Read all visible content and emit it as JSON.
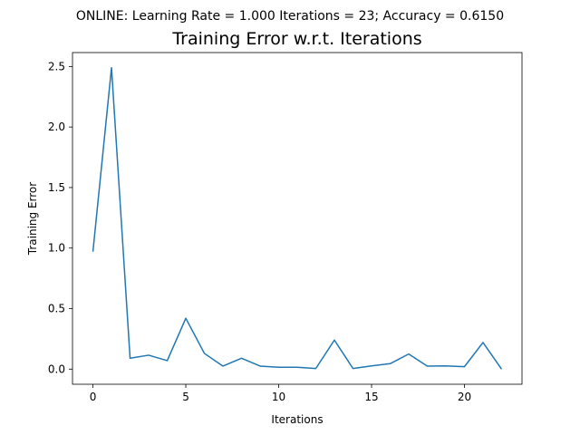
{
  "suptitle": "ONLINE: Learning Rate = 1.000 Iterations = 23; Accuracy = 0.6150",
  "colors": {
    "series": "#1f77b4",
    "axes": "#000000",
    "background": "#ffffff"
  },
  "chart_data": {
    "type": "line",
    "title": "Training Error w.r.t. Iterations",
    "xlabel": "Iterations",
    "ylabel": "Training Error",
    "xlim": [
      -1.1,
      23.1
    ],
    "ylim": [
      -0.125,
      2.615
    ],
    "xticks": [
      0,
      5,
      10,
      15,
      20
    ],
    "xtick_labels": [
      "0",
      "5",
      "10",
      "15",
      "20"
    ],
    "yticks": [
      0.0,
      0.5,
      1.0,
      1.5,
      2.0,
      2.5
    ],
    "ytick_labels": [
      "0.0",
      "0.5",
      "1.0",
      "1.5",
      "2.0",
      "2.5"
    ],
    "grid": false,
    "legend": "none",
    "series": [
      {
        "x": [
          0,
          1,
          2,
          3,
          4,
          5,
          6,
          7,
          8,
          9,
          10,
          11,
          12,
          13,
          14,
          15,
          16,
          17,
          18,
          19,
          20,
          21,
          22
        ],
        "values": [
          0.97,
          2.49,
          0.09,
          0.115,
          0.07,
          0.42,
          0.13,
          0.025,
          0.09,
          0.025,
          0.015,
          0.015,
          0.005,
          0.24,
          0.005,
          0.027,
          0.045,
          0.125,
          0.025,
          0.027,
          0.02,
          0.22,
          0.0
        ]
      }
    ]
  }
}
